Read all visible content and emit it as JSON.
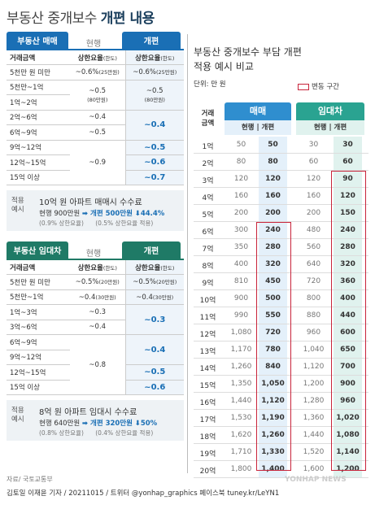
{
  "title": {
    "prefix": "부동산 중개보수",
    "bold": "개편 내용"
  },
  "sale": {
    "tag": "부동산 매매",
    "cur": "현행",
    "new": "개편",
    "hdr": [
      "거래금액",
      "상한요율",
      "(한도)",
      "상한요율",
      "(한도)"
    ],
    "rows": [
      [
        "5천만 원 미만",
        "~0.6%",
        "(25만원)",
        "~0.6%",
        "(25만원)"
      ],
      [
        "5천만~1억",
        "~0.5",
        "(80만원)",
        "~0.5",
        "(80만원)"
      ],
      [
        "1억~2억",
        "",
        "",
        "",
        ""
      ],
      [
        "2억~6억",
        "~0.4",
        "",
        "~0.4",
        ""
      ],
      [
        "6억~9억",
        "~0.5",
        "",
        "",
        ""
      ],
      [
        "9억~12억",
        "~0.9",
        "",
        "~0.5",
        ""
      ],
      [
        "12억~15억",
        "",
        "",
        "~0.6",
        ""
      ],
      [
        "15억 이상",
        "",
        "",
        "~0.7",
        ""
      ]
    ],
    "ex_label": "적용\n예시",
    "ex_q": "10억 원 아파트 매매시 수수료",
    "ex_r1a": "현행 900만원",
    "ex_r1b": "➡ 개편 500만원",
    "ex_r1c": "⬇44.4%",
    "ex_r2": "(0.9% 상한요율)      (0.5% 상한요율 적용)"
  },
  "rent": {
    "tag": "부동산 임대차",
    "cur": "현행",
    "new": "개편",
    "hdr": [
      "거래금액",
      "상한요율",
      "(한도)",
      "상한요율",
      "(한도)"
    ],
    "rows": [
      [
        "5천만 원 미만",
        "~0.5%",
        "(20만원)",
        "~0.5%",
        "(20만원)"
      ],
      [
        "5천만~1억",
        "~0.4",
        "(30만원)",
        "~0.4",
        "(30만원)"
      ],
      [
        "1억~3억",
        "~0.3",
        "",
        "~0.3",
        ""
      ],
      [
        "3억~6억",
        "~0.4",
        "",
        "",
        ""
      ],
      [
        "6억~9억",
        "~0.8",
        "",
        "~0.4",
        ""
      ],
      [
        "9억~12억",
        "",
        "",
        "",
        ""
      ],
      [
        "12억~15억",
        "",
        "",
        "~0.5",
        ""
      ],
      [
        "15억 이상",
        "",
        "",
        "~0.6",
        ""
      ]
    ],
    "ex_label": "적용\n예시",
    "ex_q": "8억 원 아파트 임대시 수수료",
    "ex_r1a": "현행 640만원",
    "ex_r1b": "➡ 개편 320만원",
    "ex_r1c": "⬇50%",
    "ex_r2": "(0.8% 상한요율)      (0.4% 상한요율 적용)"
  },
  "compare": {
    "title1": "부동산 중개보수 부담 개편",
    "title2": "적용 예시 비교",
    "unit": "단위: 만 원",
    "legend": "변동 구간",
    "rowhdr": "거래\n금액",
    "g1": "매매",
    "g2": "임대차",
    "sub": [
      "현행",
      "|",
      "개편",
      "현행",
      "|",
      "개편"
    ],
    "rows": [
      [
        "1억",
        "50",
        "50",
        "30",
        "30"
      ],
      [
        "2억",
        "80",
        "80",
        "60",
        "60"
      ],
      [
        "3억",
        "120",
        "120",
        "120",
        "90"
      ],
      [
        "4억",
        "160",
        "160",
        "160",
        "120"
      ],
      [
        "5억",
        "200",
        "200",
        "200",
        "150"
      ],
      [
        "6억",
        "300",
        "240",
        "480",
        "240"
      ],
      [
        "7억",
        "350",
        "280",
        "560",
        "280"
      ],
      [
        "8억",
        "400",
        "320",
        "640",
        "320"
      ],
      [
        "9억",
        "810",
        "450",
        "720",
        "360"
      ],
      [
        "10억",
        "900",
        "500",
        "800",
        "400"
      ],
      [
        "11억",
        "990",
        "550",
        "880",
        "440"
      ],
      [
        "12억",
        "1,080",
        "720",
        "960",
        "600"
      ],
      [
        "13억",
        "1,170",
        "780",
        "1,040",
        "650"
      ],
      [
        "14억",
        "1,260",
        "840",
        "1,120",
        "700"
      ],
      [
        "15억",
        "1,350",
        "1,050",
        "1,200",
        "900"
      ],
      [
        "16억",
        "1,440",
        "1,120",
        "1,280",
        "960"
      ],
      [
        "17억",
        "1,530",
        "1,190",
        "1,360",
        "1,020"
      ],
      [
        "18억",
        "1,620",
        "1,260",
        "1,440",
        "1,080"
      ],
      [
        "19억",
        "1,710",
        "1,330",
        "1,520",
        "1,140"
      ],
      [
        "20억",
        "1,800",
        "1,400",
        "1,600",
        "1,200"
      ]
    ]
  },
  "source": "자료/ 국토교통부",
  "footer": "김토일 이재윤 기자 / 20211015 / 트위터 @yonhap_graphics  페이스북 tuney.kr/LeYN1",
  "watermark": "YONHAP NEWS",
  "colors": {
    "sale": "#1a6fb5",
    "rent": "#1f7a66",
    "red": "#c8243b"
  }
}
